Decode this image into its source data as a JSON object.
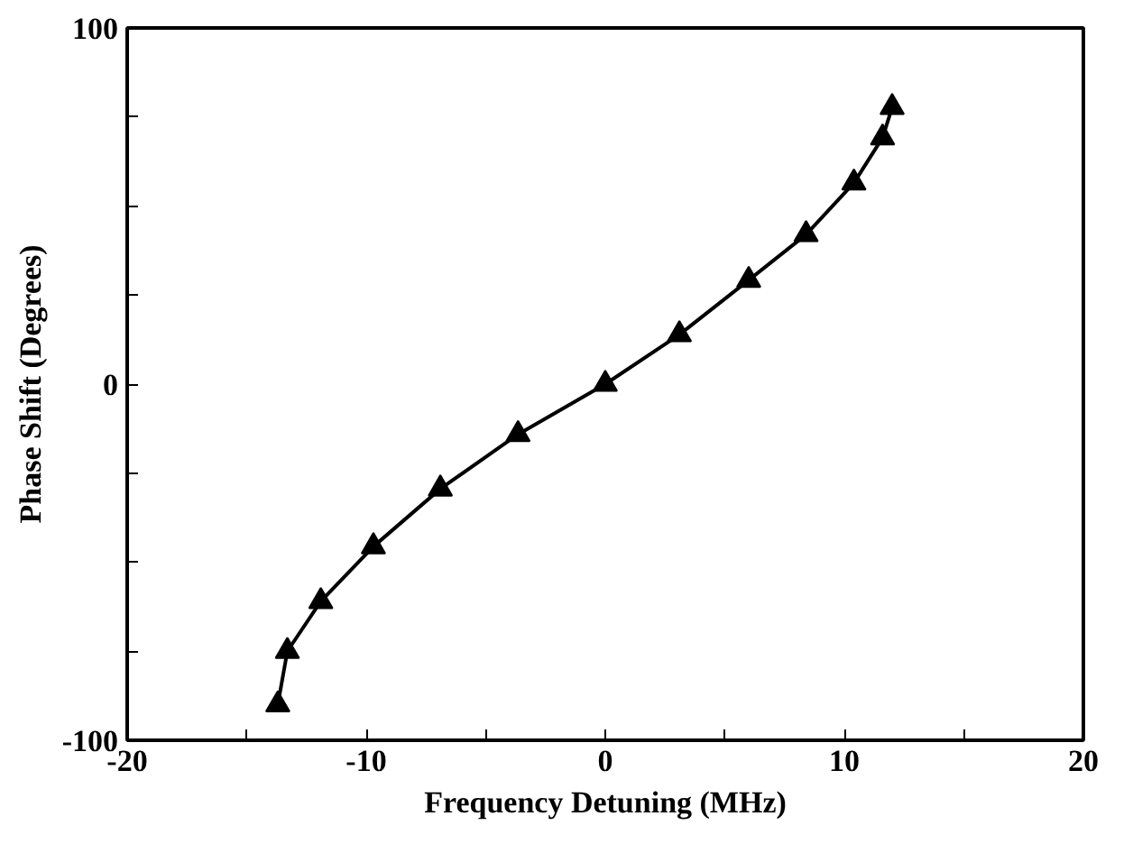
{
  "chart_data": {
    "type": "line",
    "xlabel": "Frequency Detuning (MHz)",
    "ylabel": "Phase Shift (Degrees)",
    "x": [
      -13.7,
      -13.3,
      -11.9,
      -9.7,
      -6.9,
      -3.65,
      0,
      3.1,
      6.0,
      8.4,
      10.4,
      11.6,
      12.0
    ],
    "series": [
      {
        "color": "#000000",
        "values": [
          -90,
          -75,
          -61,
          -45.6,
          -29.4,
          -14.1,
          0,
          13.9,
          29.2,
          42,
          56.5,
          69.2,
          77.7
        ]
      }
    ],
    "xlim": [
      -20,
      20
    ],
    "ylim": [
      -100,
      100
    ],
    "xticks": [
      -20,
      {
        "value": -15,
        "label": null
      },
      -10,
      {
        "value": -5,
        "label": null
      },
      0,
      {
        "value": 5,
        "label": null
      },
      10,
      {
        "value": 15,
        "label": null
      },
      20
    ],
    "yticks": [
      -100,
      {
        "value": -75,
        "label": null
      },
      {
        "value": -50,
        "label": null
      },
      {
        "value": -25,
        "label": null
      },
      0,
      {
        "value": 25,
        "label": null
      },
      {
        "value": 50,
        "label": null
      },
      {
        "value": 75,
        "label": null
      },
      100
    ],
    "marker": "triangle",
    "line_style": "solid"
  }
}
